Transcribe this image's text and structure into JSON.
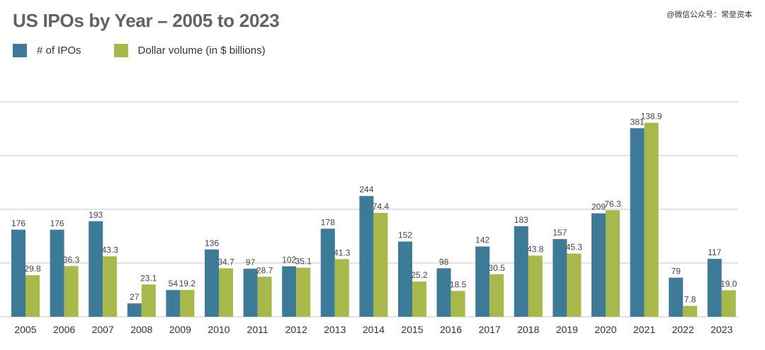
{
  "title": "US IPOs by Year – 2005 to 2023",
  "watermark": "@微信公众号：常垒资本",
  "colors": {
    "ipos": "#3d7b99",
    "volume": "#a9b84a",
    "grid": "#e2e2e2",
    "label": "#444444"
  },
  "chart_data": {
    "type": "bar",
    "title": "US IPOs by Year – 2005 to 2023",
    "categories": [
      "2005",
      "2006",
      "2007",
      "2008",
      "2009",
      "2010",
      "2011",
      "2012",
      "2013",
      "2014",
      "2015",
      "2016",
      "2017",
      "2018",
      "2019",
      "2020",
      "2021",
      "2022",
      "2023"
    ],
    "series": [
      {
        "name": "# of IPOs",
        "values": [
          176,
          176,
          193,
          27,
          54,
          136,
          97,
          102,
          178,
          244,
          152,
          98,
          142,
          183,
          157,
          209,
          381,
          79,
          117
        ],
        "labels": [
          "176",
          "176",
          "193",
          "27",
          "54",
          "136",
          "97",
          "102",
          "178",
          "244",
          "152",
          "98",
          "142",
          "183",
          "157",
          "209",
          "381",
          "79",
          "117"
        ]
      },
      {
        "name": "Dollar volume (in $ billions)",
        "values": [
          29.8,
          36.3,
          43.3,
          23.1,
          19.2,
          34.7,
          28.7,
          35.1,
          41.3,
          74.4,
          25.2,
          18.5,
          30.5,
          43.8,
          45.3,
          76.3,
          138.9,
          7.8,
          19.0
        ],
        "labels": [
          "29.8",
          "36.3",
          "43.3",
          "23.1",
          "19.2",
          "34.7",
          "28.7",
          "35.1",
          "41.3",
          "74.4",
          "25.2",
          "18.5",
          "30.5",
          "43.8",
          "45.3",
          "76.3",
          "138.9",
          "7.8",
          "19.0"
        ]
      }
    ],
    "ylim_ipos": [
      0,
      550
    ],
    "ylim_volume": [
      0,
      200
    ],
    "grid": true,
    "legend_position": "top-left"
  }
}
